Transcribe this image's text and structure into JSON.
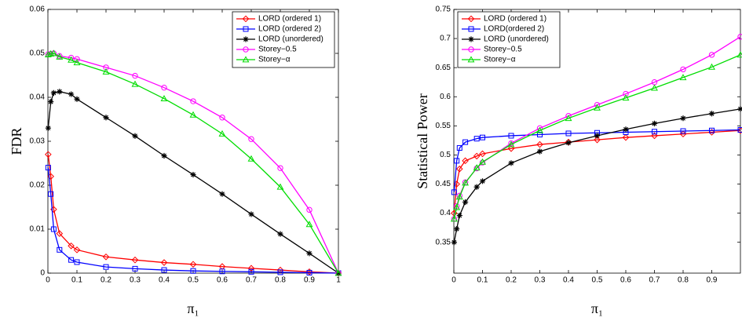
{
  "chart_data": [
    {
      "type": "line",
      "ylabel": "FDR",
      "xlabel": "π₁",
      "x": [
        0.001,
        0.01,
        0.02,
        0.04,
        0.08,
        0.1,
        0.2,
        0.3,
        0.4,
        0.5,
        0.6,
        0.7,
        0.8,
        0.9,
        1
      ],
      "xlim": [
        0,
        1
      ],
      "xticks": [
        0,
        0.1,
        0.2,
        0.3,
        0.4,
        0.5,
        0.6,
        0.7,
        0.8,
        0.9,
        1
      ],
      "ylim": [
        0,
        0.06
      ],
      "yticks": [
        0,
        0.01,
        0.02,
        0.03,
        0.04,
        0.05,
        0.06
      ],
      "grid": false,
      "legend": "upper right",
      "series": [
        {
          "name": "LORD (ordered 1)",
          "color": "#ff0000",
          "marker": "diamond",
          "values": [
            0.027,
            0.022,
            0.0145,
            0.009,
            0.0062,
            0.0053,
            0.0037,
            0.003,
            0.0024,
            0.002,
            0.0015,
            0.0011,
            0.0007,
            0.0003,
            0
          ]
        },
        {
          "name": "LORD (ordered 2)",
          "color": "#0000ff",
          "marker": "square",
          "values": [
            0.024,
            0.018,
            0.01,
            0.0053,
            0.003,
            0.0025,
            0.0014,
            0.001,
            0.0007,
            0.0005,
            0.0004,
            0.0003,
            0.0002,
            0.0001,
            0
          ]
        },
        {
          "name": "LORD (unordered)",
          "color": "#000000",
          "marker": "star",
          "values": [
            0.033,
            0.039,
            0.041,
            0.0413,
            0.0407,
            0.0396,
            0.0354,
            0.0312,
            0.0267,
            0.0224,
            0.018,
            0.0134,
            0.0089,
            0.0045,
            0
          ]
        },
        {
          "name": "Storey−0.5",
          "color": "#ff00ff",
          "marker": "circle",
          "values": [
            0.0498,
            0.0499,
            0.05,
            0.0494,
            0.049,
            0.0487,
            0.0468,
            0.0449,
            0.0422,
            0.0391,
            0.0354,
            0.0305,
            0.0239,
            0.0144,
            0
          ]
        },
        {
          "name": "Storey−α",
          "color": "#00dd00",
          "marker": "triangle",
          "values": [
            0.0497,
            0.0499,
            0.05,
            0.0492,
            0.0485,
            0.0479,
            0.0458,
            0.043,
            0.0397,
            0.036,
            0.0317,
            0.026,
            0.0196,
            0.0111,
            0
          ]
        }
      ]
    },
    {
      "type": "line",
      "ylabel": "Statistical Power",
      "xlabel": "π₁",
      "x": [
        0.001,
        0.01,
        0.02,
        0.04,
        0.08,
        0.1,
        0.2,
        0.3,
        0.4,
        0.5,
        0.6,
        0.7,
        0.8,
        0.9,
        1
      ],
      "xlim": [
        0,
        1
      ],
      "xticks": [
        0,
        0.1,
        0.2,
        0.3,
        0.4,
        0.5,
        0.6,
        0.7,
        0.8,
        0.9
      ],
      "ylim": [
        0.297,
        0.75
      ],
      "yticks": [
        0.35,
        0.4,
        0.45,
        0.5,
        0.55,
        0.6,
        0.65,
        0.7,
        0.75
      ],
      "grid": false,
      "legend": "upper left",
      "series": [
        {
          "name": "LORD (ordered 1)",
          "color": "#ff0000",
          "marker": "diamond",
          "values": [
            0.4,
            0.45,
            0.476,
            0.49,
            0.498,
            0.502,
            0.511,
            0.518,
            0.522,
            0.526,
            0.53,
            0.533,
            0.536,
            0.539,
            0.542
          ]
        },
        {
          "name": "LORD(ordered 2)",
          "color": "#0000ff",
          "marker": "square",
          "values": [
            0.436,
            0.49,
            0.512,
            0.522,
            0.528,
            0.53,
            0.533,
            0.535,
            0.537,
            0.538,
            0.539,
            0.54,
            0.541,
            0.542,
            0.543
          ]
        },
        {
          "name": "LORD (unordered)",
          "color": "#000000",
          "marker": "star",
          "values": [
            0.35,
            0.373,
            0.396,
            0.419,
            0.445,
            0.455,
            0.486,
            0.506,
            0.521,
            0.533,
            0.544,
            0.554,
            0.563,
            0.571,
            0.579
          ]
        },
        {
          "name": "Storey−0.5",
          "color": "#ff00ff",
          "marker": "circle",
          "values": [
            0.39,
            0.412,
            0.43,
            0.453,
            0.477,
            0.487,
            0.52,
            0.546,
            0.567,
            0.586,
            0.605,
            0.625,
            0.647,
            0.672,
            0.703
          ]
        },
        {
          "name": "Storey−α",
          "color": "#00dd00",
          "marker": "triangle",
          "values": [
            0.39,
            0.41,
            0.428,
            0.452,
            0.478,
            0.488,
            0.518,
            0.542,
            0.563,
            0.581,
            0.598,
            0.615,
            0.633,
            0.651,
            0.672
          ]
        }
      ]
    }
  ]
}
